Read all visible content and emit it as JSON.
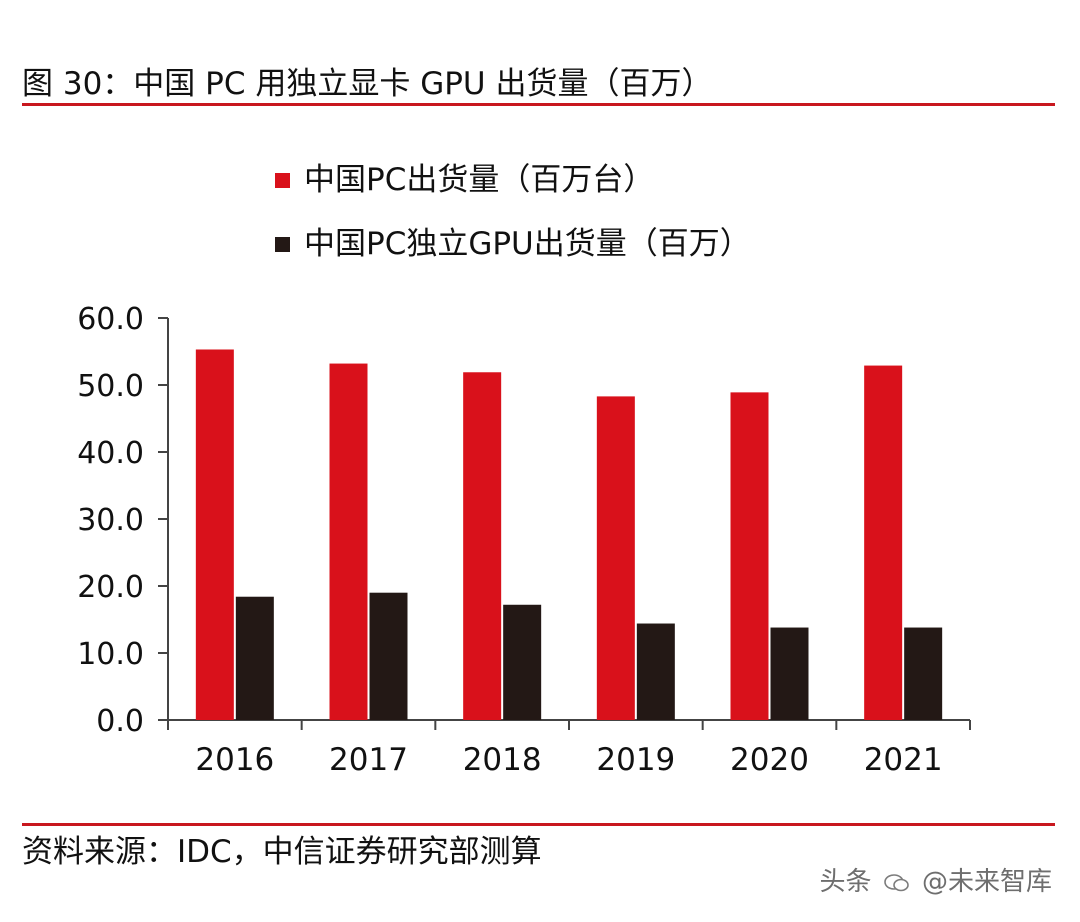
{
  "title": "图 30：中国 PC 用独立显卡 GPU 出货量（百万）",
  "source": "资料来源：IDC，中信证券研究部测算",
  "watermark": {
    "platform": "头条",
    "handle": "@未来智库"
  },
  "colors": {
    "rule": "#c8171e",
    "series_red": "#d9111b",
    "series_dark": "#231815",
    "axis": "#444444"
  },
  "chart_data": {
    "type": "bar",
    "categories": [
      "2016",
      "2017",
      "2018",
      "2019",
      "2020",
      "2021"
    ],
    "series": [
      {
        "name": "中国PC出货量（百万台）",
        "values": [
          55.3,
          53.2,
          51.9,
          48.3,
          48.9,
          52.9
        ]
      },
      {
        "name": "中国PC独立GPU出货量（百万）",
        "values": [
          18.4,
          19.0,
          17.2,
          14.4,
          13.8,
          13.8
        ]
      }
    ],
    "ylim": [
      0,
      60
    ],
    "yticks": [
      "0.0",
      "10.0",
      "20.0",
      "30.0",
      "40.0",
      "50.0",
      "60.0"
    ],
    "ytick_values": [
      0,
      10,
      20,
      30,
      40,
      50,
      60
    ],
    "grid": false,
    "legend_position": "top"
  }
}
